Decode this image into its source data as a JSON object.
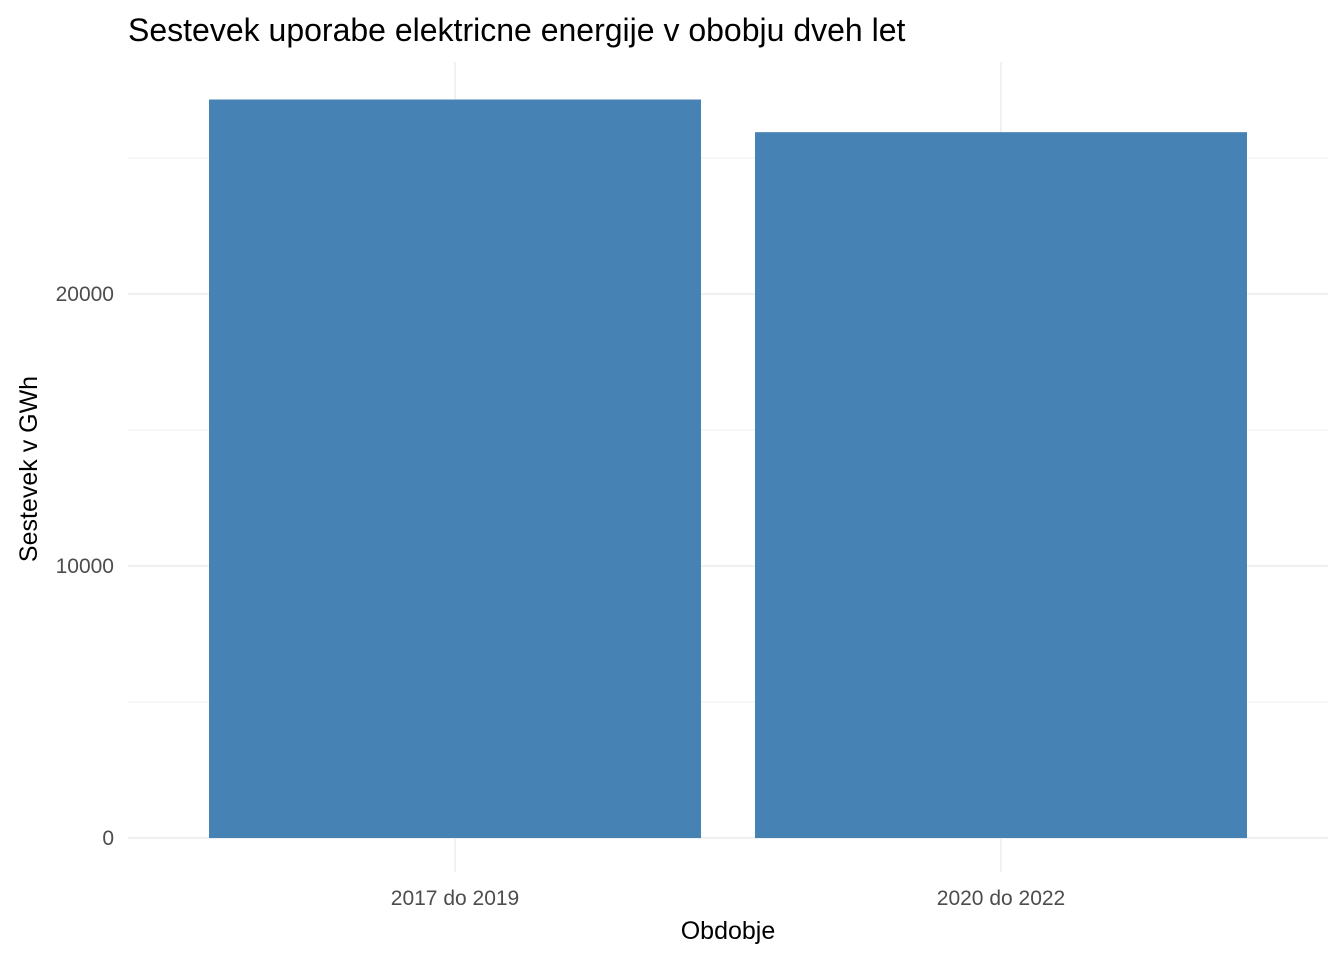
{
  "chart_data": {
    "type": "bar",
    "title": "Sestevek uporabe elektricne energije v obobju dveh let",
    "xlabel": "Obdobje",
    "ylabel": "Sestevek v GWh",
    "categories": [
      "2017 do 2019",
      "2020 do 2022"
    ],
    "values": [
      27150,
      25950
    ],
    "ylim": [
      0,
      28500
    ],
    "y_ticks": [
      0,
      10000,
      20000
    ],
    "y_tick_labels": [
      "0",
      "10000",
      "20000"
    ],
    "bar_color": "#4682b4",
    "grid": true,
    "legend": "none"
  }
}
